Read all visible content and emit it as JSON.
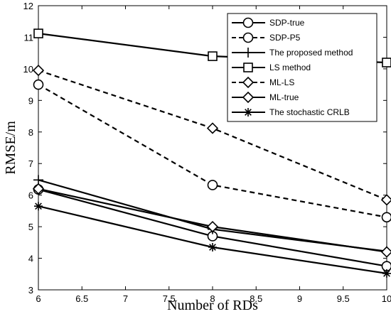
{
  "chart_data": {
    "type": "line",
    "xlabel": "Number of RDs",
    "ylabel": "RMSE/m",
    "xlim": [
      6,
      10
    ],
    "ylim": [
      3,
      12
    ],
    "x_ticks": [
      "6",
      "6.5",
      "7",
      "7.5",
      "8",
      "8.5",
      "9",
      "9.5",
      "10"
    ],
    "y_ticks": [
      "3",
      "4",
      "5",
      "6",
      "7",
      "8",
      "9",
      "10",
      "11",
      "12"
    ],
    "grid": false,
    "legend_position": "top-right",
    "x": [
      6,
      8,
      10
    ],
    "series": [
      {
        "name": "SDP-true",
        "values": [
          6.18,
          4.7,
          3.75
        ],
        "line": "solid",
        "marker": "circle"
      },
      {
        "name": "SDP-P5",
        "values": [
          9.5,
          6.32,
          5.3
        ],
        "line": "dashed",
        "marker": "circle"
      },
      {
        "name": "The proposed method",
        "values": [
          6.48,
          4.92,
          4.22
        ],
        "line": "solid",
        "marker": "plus"
      },
      {
        "name": "LS method",
        "values": [
          11.12,
          10.4,
          10.2
        ],
        "line": "solid",
        "marker": "square"
      },
      {
        "name": "ML-LS",
        "values": [
          9.95,
          8.12,
          5.85
        ],
        "line": "dashed",
        "marker": "diamond"
      },
      {
        "name": "ML-true",
        "values": [
          6.2,
          5.0,
          4.2
        ],
        "line": "solid",
        "marker": "diamond"
      },
      {
        "name": "The stochastic CRLB",
        "values": [
          5.65,
          4.35,
          3.52
        ],
        "line": "solid",
        "marker": "asterisk"
      }
    ]
  }
}
